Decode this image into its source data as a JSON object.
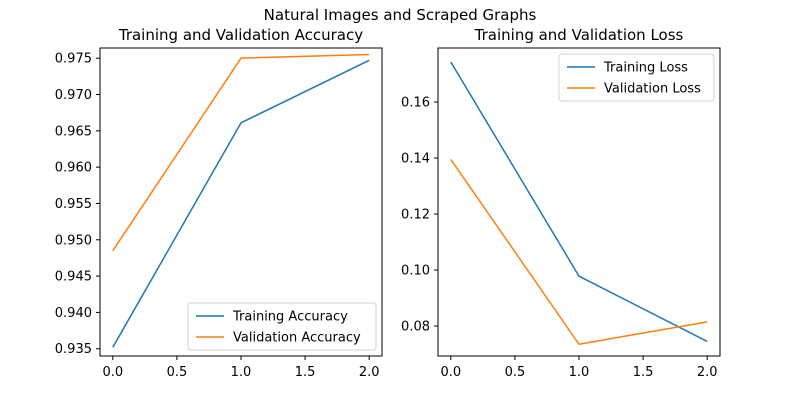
{
  "figure_title": "Natural Images and Scraped Graphs",
  "colors": {
    "series_1": "#1f77b4",
    "series_2": "#ff7f0e"
  },
  "chart_data": [
    {
      "type": "line",
      "title": "Training and Validation Accuracy",
      "xlabel": "",
      "ylabel": "",
      "x": [
        0,
        1,
        2
      ],
      "xlim": [
        -0.1,
        2.1
      ],
      "ylim": [
        0.934,
        0.9764
      ],
      "xticks": [
        "0.0",
        "0.5",
        "1.0",
        "1.5",
        "2.0"
      ],
      "xtick_values": [
        0,
        0.5,
        1,
        1.5,
        2
      ],
      "yticks": [
        "0.935",
        "0.940",
        "0.945",
        "0.950",
        "0.955",
        "0.960",
        "0.965",
        "0.970",
        "0.975"
      ],
      "ytick_values": [
        0.935,
        0.94,
        0.945,
        0.95,
        0.955,
        0.96,
        0.965,
        0.97,
        0.975
      ],
      "legend_position": "lower-right",
      "grid": false,
      "series": [
        {
          "name": "Training Accuracy",
          "color": "#1f77b4",
          "values": [
            0.9352,
            0.9661,
            0.9747
          ]
        },
        {
          "name": "Validation Accuracy",
          "color": "#ff7f0e",
          "values": [
            0.9485,
            0.975,
            0.9755
          ]
        }
      ]
    },
    {
      "type": "line",
      "title": "Training and Validation Loss",
      "xlabel": "",
      "ylabel": "",
      "x": [
        0,
        1,
        2
      ],
      "xlim": [
        -0.1,
        2.1
      ],
      "ylim": [
        0.0693,
        0.1793
      ],
      "xticks": [
        "0.0",
        "0.5",
        "1.0",
        "1.5",
        "2.0"
      ],
      "xtick_values": [
        0,
        0.5,
        1,
        1.5,
        2
      ],
      "yticks": [
        "0.08",
        "0.10",
        "0.12",
        "0.14",
        "0.16"
      ],
      "ytick_values": [
        0.08,
        0.1,
        0.12,
        0.14,
        0.16
      ],
      "legend_position": "upper-right",
      "grid": false,
      "series": [
        {
          "name": "Training Loss",
          "color": "#1f77b4",
          "values": [
            0.1743,
            0.0978,
            0.0745
          ]
        },
        {
          "name": "Validation Loss",
          "color": "#ff7f0e",
          "values": [
            0.1395,
            0.0735,
            0.0815
          ]
        }
      ]
    }
  ]
}
